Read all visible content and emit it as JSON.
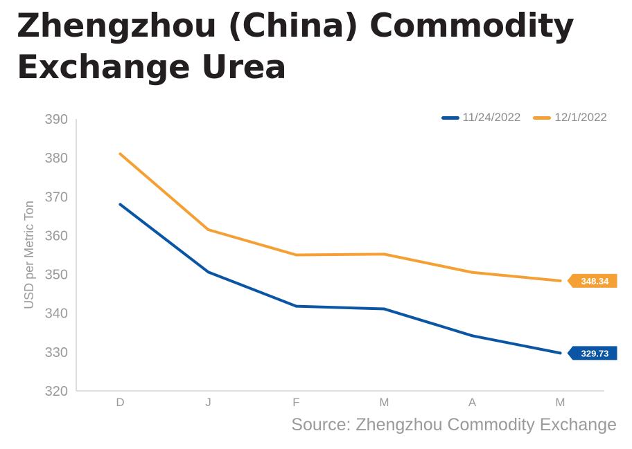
{
  "chart_data": {
    "type": "line",
    "title": "Zhengzhou (China) Commodity Exchange Urea",
    "ylabel": "USD per Metric Ton",
    "xlabel": "",
    "categories": [
      "D",
      "J",
      "F",
      "M",
      "A",
      "M"
    ],
    "ylim": [
      320,
      390
    ],
    "yticks": [
      320,
      330,
      340,
      350,
      360,
      370,
      380,
      390
    ],
    "grid": false,
    "legend_position": "top-right",
    "series": [
      {
        "name": "11/24/2022",
        "color": "#0b56a4",
        "values": [
          368.0,
          350.6,
          341.8,
          341.1,
          334.2,
          329.73
        ],
        "end_label": "329.73"
      },
      {
        "name": "12/1/2022",
        "color": "#f5a035",
        "values": [
          381.0,
          361.5,
          355.0,
          355.2,
          350.5,
          348.34
        ],
        "end_label": "348.34"
      }
    ],
    "source": "Source: Zhengzhou Commodity Exchange"
  }
}
